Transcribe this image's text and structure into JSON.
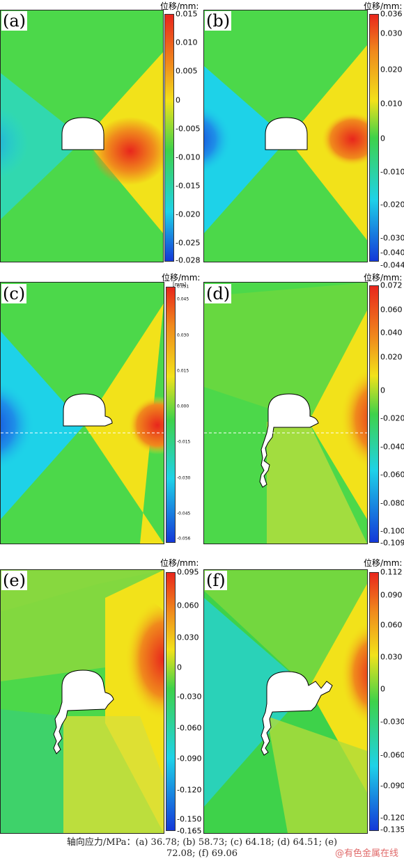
{
  "panels": [
    {
      "label": "(a)",
      "unit": "位移/mm:",
      "ticks": [
        "0.015",
        "0.010",
        "0.005",
        "0",
        "-0.005",
        "-0.010",
        "-0.015",
        "-0.020",
        "-0.025",
        "-0.028"
      ]
    },
    {
      "label": "(b)",
      "unit": "位移/mm:",
      "ticks": [
        "0.036",
        "0.030",
        "0.020",
        "0.010",
        "0",
        "-0.010",
        "-0.020",
        "-0.030",
        "-0.040",
        "-0.044"
      ]
    },
    {
      "label": "(c)",
      "unit": "位移/mm:",
      "sub_unit": "[mm]",
      "ticks": [
        "0.051",
        "0.045",
        "0.030",
        "0.015",
        "0.000",
        "-0.015",
        "-0.030",
        "-0.045",
        "-0.056"
      ]
    },
    {
      "label": "(d)",
      "unit": "位移/mm:",
      "ticks": [
        "0.072",
        "0.060",
        "0.040",
        "0.020",
        "0",
        "-0.020",
        "-0.040",
        "-0.060",
        "-0.080",
        "-0.100",
        "-0.109"
      ]
    },
    {
      "label": "(e)",
      "unit": "位移/mm:",
      "ticks": [
        "0.095",
        "0.060",
        "0.030",
        "0",
        "-0.030",
        "-0.060",
        "-0.090",
        "-0.120",
        "-0.150",
        "-0.165"
      ]
    },
    {
      "label": "(f)",
      "unit": "位移/mm:",
      "ticks": [
        "0.112",
        "0.090",
        "0.060",
        "0.030",
        "0",
        "-0.030",
        "-0.060",
        "-0.090",
        "-0.120",
        "-0.135"
      ]
    }
  ],
  "caption": {
    "line1": "轴向应力/MPa：(a) 36.78; (b) 58.73; (c) 64.18; (d) 64.51; (e)",
    "line2": "72.08; (f) 69.06"
  },
  "watermark": "@有色金属在线",
  "colors": {
    "red": "#e8261c",
    "orange": "#f08a1c",
    "yellow": "#f2e21a",
    "green": "#3ed24a",
    "cyan": "#1ed2e8",
    "blue": "#1438d8"
  }
}
